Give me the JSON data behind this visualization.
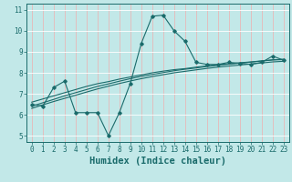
{
  "title": "",
  "xlabel": "Humidex (Indice chaleur)",
  "ylabel": "",
  "bg_color": "#c2e8e8",
  "line_color": "#1a6b6b",
  "xlim": [
    -0.5,
    23.5
  ],
  "ylim": [
    4.7,
    11.3
  ],
  "yticks": [
    5,
    6,
    7,
    8,
    9,
    10,
    11
  ],
  "xticks": [
    0,
    1,
    2,
    3,
    4,
    5,
    6,
    7,
    8,
    9,
    10,
    11,
    12,
    13,
    14,
    15,
    16,
    17,
    18,
    19,
    20,
    21,
    22,
    23
  ],
  "zigzag_x": [
    0,
    1,
    2,
    3,
    4,
    5,
    6,
    7,
    8,
    9,
    10,
    11,
    12,
    13,
    14,
    15,
    16,
    17,
    18,
    19,
    20,
    21,
    22,
    23
  ],
  "zigzag_y": [
    6.5,
    6.4,
    7.3,
    7.6,
    6.1,
    6.1,
    6.1,
    5.0,
    6.1,
    7.5,
    9.4,
    10.7,
    10.75,
    10.0,
    9.5,
    8.5,
    8.4,
    8.4,
    8.5,
    8.45,
    8.4,
    8.5,
    8.8,
    8.6
  ],
  "smooth1_x": [
    0,
    1,
    2,
    3,
    4,
    5,
    6,
    7,
    8,
    9,
    10,
    11,
    12,
    13,
    14,
    15,
    16,
    17,
    18,
    19,
    20,
    21,
    22,
    23
  ],
  "smooth1_y": [
    6.6,
    6.75,
    6.9,
    7.05,
    7.2,
    7.35,
    7.48,
    7.58,
    7.7,
    7.8,
    7.9,
    8.0,
    8.08,
    8.15,
    8.2,
    8.27,
    8.33,
    8.38,
    8.43,
    8.48,
    8.52,
    8.57,
    8.62,
    8.65
  ],
  "smooth2_x": [
    0,
    1,
    2,
    3,
    4,
    5,
    6,
    7,
    8,
    9,
    10,
    11,
    12,
    13,
    14,
    15,
    16,
    17,
    18,
    19,
    20,
    21,
    22,
    23
  ],
  "smooth2_y": [
    6.4,
    6.57,
    6.73,
    6.9,
    7.05,
    7.2,
    7.35,
    7.47,
    7.6,
    7.72,
    7.83,
    7.92,
    8.01,
    8.1,
    8.17,
    8.23,
    8.3,
    8.36,
    8.41,
    8.46,
    8.51,
    8.56,
    8.61,
    8.63
  ],
  "smooth3_x": [
    0,
    1,
    2,
    3,
    4,
    5,
    6,
    7,
    8,
    9,
    10,
    11,
    12,
    13,
    14,
    15,
    16,
    17,
    18,
    19,
    20,
    21,
    22,
    23
  ],
  "smooth3_y": [
    6.3,
    6.47,
    6.63,
    6.78,
    6.93,
    7.08,
    7.23,
    7.36,
    7.49,
    7.61,
    7.72,
    7.82,
    7.91,
    8.0,
    8.07,
    8.14,
    8.21,
    8.27,
    8.32,
    8.37,
    8.42,
    8.47,
    8.52,
    8.55
  ],
  "vgrid_color": "#e8b8b8",
  "hgrid_color": "#ffffff",
  "tick_color": "#1a6b6b",
  "label_color": "#1a6b6b",
  "font": "monospace",
  "tick_fontsize": 5.5,
  "label_fontsize": 7.5
}
